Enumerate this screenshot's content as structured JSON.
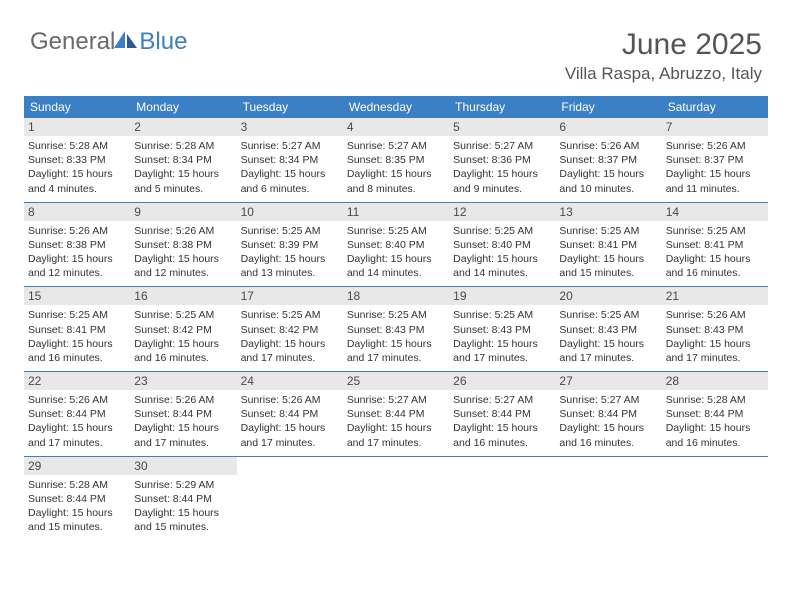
{
  "logo": {
    "general": "General",
    "blue": "Blue"
  },
  "title": "June 2025",
  "location": "Villa Raspa, Abruzzo, Italy",
  "colors": {
    "header_band": "#3b7fc4",
    "day_number_bg": "#e8e8e8",
    "text": "#333333",
    "title_text": "#555555",
    "row_border": "#3b7fc4",
    "logo_gray": "#6a6a6a",
    "logo_blue": "#3b7fc4"
  },
  "fonts": {
    "title_size": 30,
    "location_size": 17,
    "weekday_size": 12,
    "daynum_size": 12,
    "body_size": 10.5
  },
  "weekdays": [
    "Sunday",
    "Monday",
    "Tuesday",
    "Wednesday",
    "Thursday",
    "Friday",
    "Saturday"
  ],
  "weeks": [
    [
      {
        "n": "1",
        "sunrise": "5:28 AM",
        "sunset": "8:33 PM",
        "dl": "15 hours and 4 minutes."
      },
      {
        "n": "2",
        "sunrise": "5:28 AM",
        "sunset": "8:34 PM",
        "dl": "15 hours and 5 minutes."
      },
      {
        "n": "3",
        "sunrise": "5:27 AM",
        "sunset": "8:34 PM",
        "dl": "15 hours and 6 minutes."
      },
      {
        "n": "4",
        "sunrise": "5:27 AM",
        "sunset": "8:35 PM",
        "dl": "15 hours and 8 minutes."
      },
      {
        "n": "5",
        "sunrise": "5:27 AM",
        "sunset": "8:36 PM",
        "dl": "15 hours and 9 minutes."
      },
      {
        "n": "6",
        "sunrise": "5:26 AM",
        "sunset": "8:37 PM",
        "dl": "15 hours and 10 minutes."
      },
      {
        "n": "7",
        "sunrise": "5:26 AM",
        "sunset": "8:37 PM",
        "dl": "15 hours and 11 minutes."
      }
    ],
    [
      {
        "n": "8",
        "sunrise": "5:26 AM",
        "sunset": "8:38 PM",
        "dl": "15 hours and 12 minutes."
      },
      {
        "n": "9",
        "sunrise": "5:26 AM",
        "sunset": "8:38 PM",
        "dl": "15 hours and 12 minutes."
      },
      {
        "n": "10",
        "sunrise": "5:25 AM",
        "sunset": "8:39 PM",
        "dl": "15 hours and 13 minutes."
      },
      {
        "n": "11",
        "sunrise": "5:25 AM",
        "sunset": "8:40 PM",
        "dl": "15 hours and 14 minutes."
      },
      {
        "n": "12",
        "sunrise": "5:25 AM",
        "sunset": "8:40 PM",
        "dl": "15 hours and 14 minutes."
      },
      {
        "n": "13",
        "sunrise": "5:25 AM",
        "sunset": "8:41 PM",
        "dl": "15 hours and 15 minutes."
      },
      {
        "n": "14",
        "sunrise": "5:25 AM",
        "sunset": "8:41 PM",
        "dl": "15 hours and 16 minutes."
      }
    ],
    [
      {
        "n": "15",
        "sunrise": "5:25 AM",
        "sunset": "8:41 PM",
        "dl": "15 hours and 16 minutes."
      },
      {
        "n": "16",
        "sunrise": "5:25 AM",
        "sunset": "8:42 PM",
        "dl": "15 hours and 16 minutes."
      },
      {
        "n": "17",
        "sunrise": "5:25 AM",
        "sunset": "8:42 PM",
        "dl": "15 hours and 17 minutes."
      },
      {
        "n": "18",
        "sunrise": "5:25 AM",
        "sunset": "8:43 PM",
        "dl": "15 hours and 17 minutes."
      },
      {
        "n": "19",
        "sunrise": "5:25 AM",
        "sunset": "8:43 PM",
        "dl": "15 hours and 17 minutes."
      },
      {
        "n": "20",
        "sunrise": "5:25 AM",
        "sunset": "8:43 PM",
        "dl": "15 hours and 17 minutes."
      },
      {
        "n": "21",
        "sunrise": "5:26 AM",
        "sunset": "8:43 PM",
        "dl": "15 hours and 17 minutes."
      }
    ],
    [
      {
        "n": "22",
        "sunrise": "5:26 AM",
        "sunset": "8:44 PM",
        "dl": "15 hours and 17 minutes."
      },
      {
        "n": "23",
        "sunrise": "5:26 AM",
        "sunset": "8:44 PM",
        "dl": "15 hours and 17 minutes."
      },
      {
        "n": "24",
        "sunrise": "5:26 AM",
        "sunset": "8:44 PM",
        "dl": "15 hours and 17 minutes."
      },
      {
        "n": "25",
        "sunrise": "5:27 AM",
        "sunset": "8:44 PM",
        "dl": "15 hours and 17 minutes."
      },
      {
        "n": "26",
        "sunrise": "5:27 AM",
        "sunset": "8:44 PM",
        "dl": "15 hours and 16 minutes."
      },
      {
        "n": "27",
        "sunrise": "5:27 AM",
        "sunset": "8:44 PM",
        "dl": "15 hours and 16 minutes."
      },
      {
        "n": "28",
        "sunrise": "5:28 AM",
        "sunset": "8:44 PM",
        "dl": "15 hours and 16 minutes."
      }
    ],
    [
      {
        "n": "29",
        "sunrise": "5:28 AM",
        "sunset": "8:44 PM",
        "dl": "15 hours and 15 minutes."
      },
      {
        "n": "30",
        "sunrise": "5:29 AM",
        "sunset": "8:44 PM",
        "dl": "15 hours and 15 minutes."
      },
      null,
      null,
      null,
      null,
      null
    ]
  ],
  "labels": {
    "sunrise": "Sunrise:",
    "sunset": "Sunset:",
    "daylight": "Daylight:"
  }
}
